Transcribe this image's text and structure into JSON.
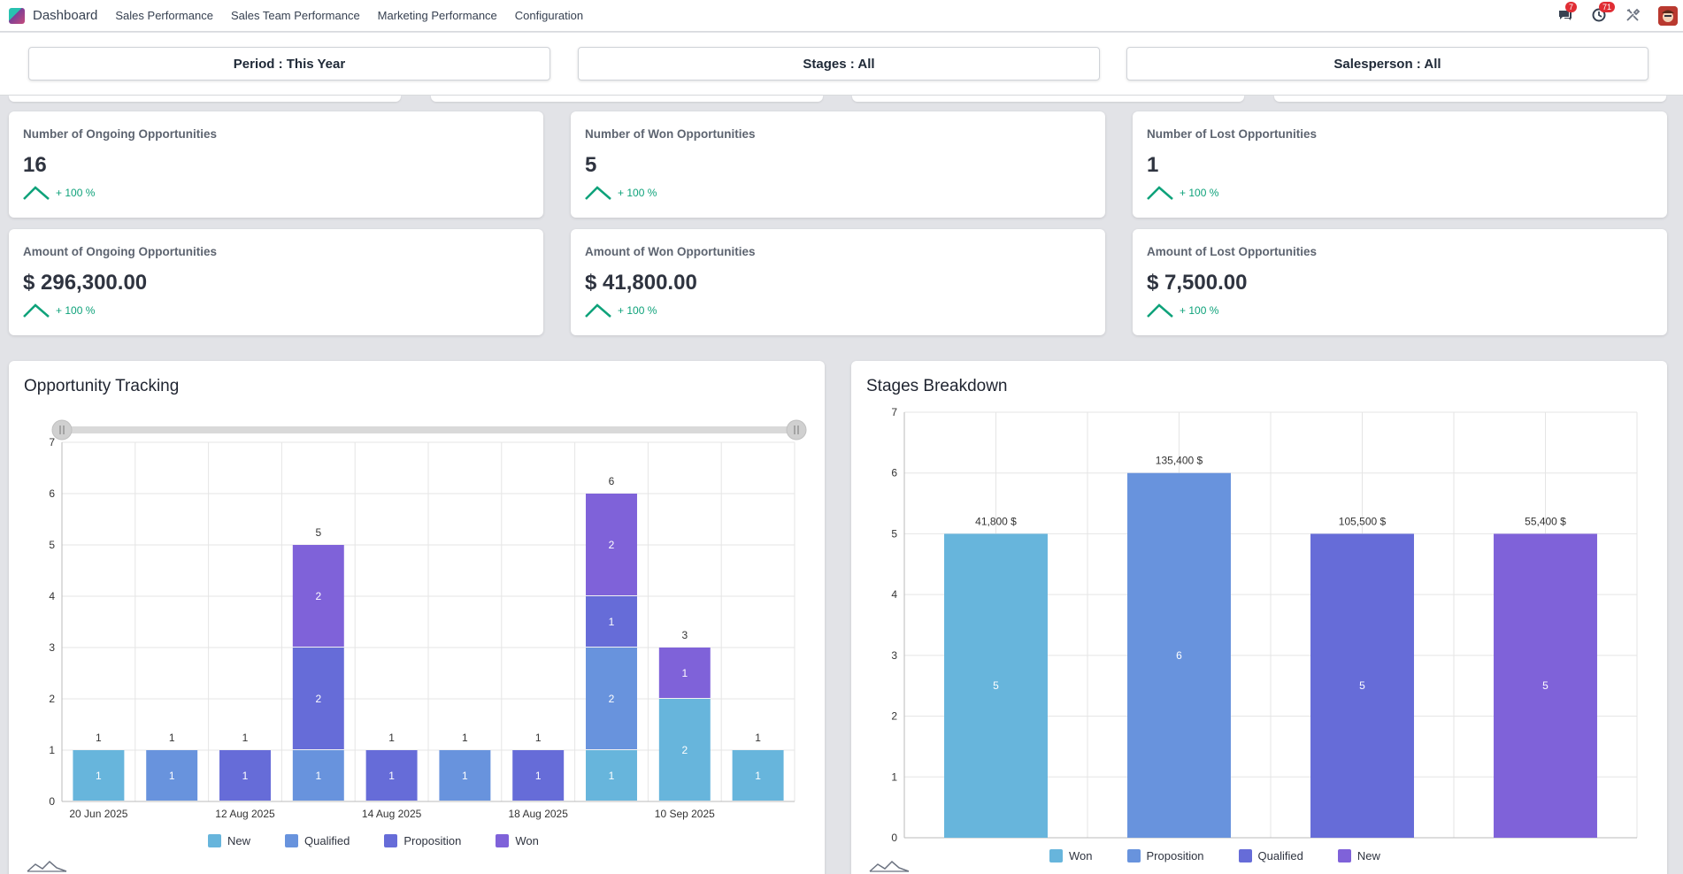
{
  "app": {
    "brand": "Dashboard",
    "menu": [
      "Sales Performance",
      "Sales Team Performance",
      "Marketing Performance",
      "Configuration"
    ],
    "messages_count": "7",
    "activities_count": "71"
  },
  "filters": [
    {
      "label": "Period : This Year"
    },
    {
      "label": "Stages : All"
    },
    {
      "label": "Salesperson : All"
    }
  ],
  "kpis": [
    {
      "title": "Number of Ongoing Opportunities",
      "value": "16",
      "trend": "+ 100 %"
    },
    {
      "title": "Number of Won Opportunities",
      "value": "5",
      "trend": "+ 100 %"
    },
    {
      "title": "Number of Lost Opportunities",
      "value": "1",
      "trend": "+ 100 %"
    },
    {
      "title": "Amount of Ongoing Opportunities",
      "value": "$ 296,300.00",
      "trend": "+ 100 %"
    },
    {
      "title": "Amount of Won Opportunities",
      "value": "$ 41,800.00",
      "trend": "+ 100 %"
    },
    {
      "title": "Amount of Lost Opportunities",
      "value": "$ 7,500.00",
      "trend": "+ 100 %"
    }
  ],
  "colors": {
    "new": "#67b5dc",
    "qualified": "#6893dd",
    "proposition": "#666cd8",
    "won": "#7f62d9",
    "trend": "#0ea27a"
  },
  "chart_data": [
    {
      "type": "bar",
      "stacked": true,
      "title": "Opportunity Tracking",
      "ylim": [
        0,
        7
      ],
      "yticks": [
        0,
        1,
        2,
        3,
        4,
        5,
        6,
        7
      ],
      "tick_labels": [
        {
          "index": 0,
          "label": "20 Jun 2025"
        },
        {
          "index": 2,
          "label": "12 Aug 2025"
        },
        {
          "index": 4,
          "label": "14 Aug 2025"
        },
        {
          "index": 6,
          "label": "18 Aug 2025"
        },
        {
          "index": 8,
          "label": "10 Sep 2025"
        }
      ],
      "slot_count": 10,
      "series": [
        {
          "name": "New",
          "color": "#67b5dc",
          "values": [
            1,
            0,
            0,
            0,
            0,
            0,
            0,
            1,
            2,
            1
          ]
        },
        {
          "name": "Qualified",
          "color": "#6893dd",
          "values": [
            0,
            1,
            0,
            1,
            0,
            1,
            0,
            2,
            0,
            0
          ]
        },
        {
          "name": "Proposition",
          "color": "#666cd8",
          "values": [
            0,
            0,
            1,
            2,
            1,
            0,
            1,
            1,
            0,
            0
          ]
        },
        {
          "name": "Won",
          "color": "#7f62d9",
          "values": [
            0,
            0,
            0,
            2,
            0,
            0,
            0,
            2,
            1,
            0
          ]
        }
      ],
      "totals": [
        1,
        1,
        1,
        5,
        1,
        1,
        1,
        6,
        3,
        1
      ],
      "legend": [
        "New",
        "Qualified",
        "Proposition",
        "Won"
      ],
      "grid": true
    },
    {
      "type": "bar",
      "title": "Stages Breakdown",
      "ylim": [
        0,
        7
      ],
      "yticks": [
        0,
        1,
        2,
        3,
        4,
        5,
        6,
        7
      ],
      "categories": [
        "Won",
        "Proposition",
        "Qualified",
        "New"
      ],
      "values": [
        5,
        6,
        5,
        5
      ],
      "amounts": [
        "41,800 $",
        "135,400 $",
        "105,500 $",
        "55,400 $"
      ],
      "colors": [
        "#67b5dc",
        "#6893dd",
        "#666cd8",
        "#7f62d9"
      ],
      "legend": [
        "Won",
        "Proposition",
        "Qualified",
        "New"
      ],
      "grid": true
    }
  ]
}
